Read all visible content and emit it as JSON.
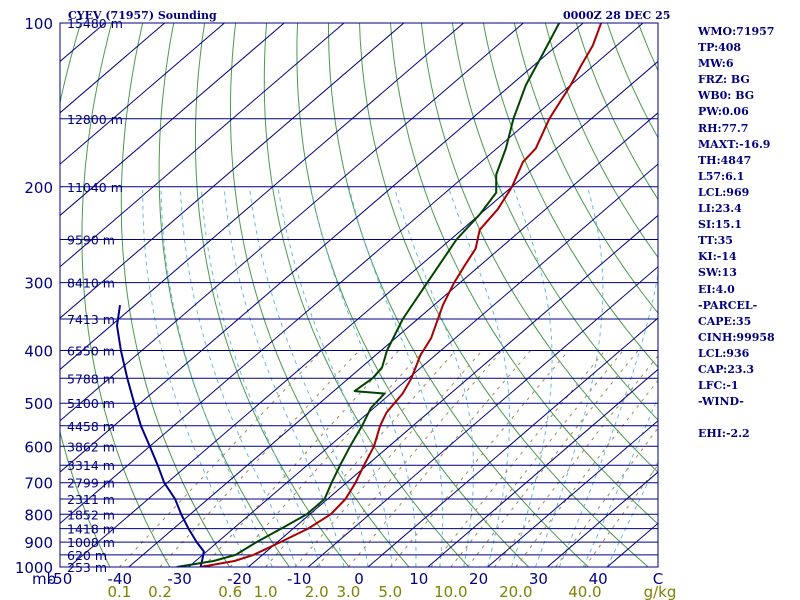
{
  "header": {
    "station": "CYEV (71957) Sounding",
    "time": "0000Z 28 DEC 25"
  },
  "indices": [
    "WMO:71957",
    "TP:408",
    "MW:6",
    "FRZ: BG",
    "WB0: BG",
    "PW:0.06",
    "RH:77.7",
    "MAXT:-16.9",
    "TH:4847",
    "L57:6.1",
    "LCL:969",
    "LI:23.4",
    "SI:15.1",
    "TT:35",
    "KI:-14",
    "SW:13",
    "EI:4.0",
    "-PARCEL-",
    "CAPE:35",
    "CINH:99958",
    "LCL:936",
    "CAP:23.3",
    "LFC:-1",
    "-WIND-",
    "",
    "EHI:-2.2"
  ],
  "colors": {
    "isobar": "#000080",
    "isotherm": "#000080",
    "dry_adiabat": "#4a9a4a",
    "moist_adiabat": "#66bbdd",
    "mixing_ratio": "#a08850",
    "temperature": "#aa0000",
    "dewpoint": "#004400",
    "parcel": "#000088",
    "text": "#000080",
    "mixing_label": "#808000"
  },
  "chart_data": {
    "type": "skew-t",
    "title": "",
    "pressure_unit_label": "mb",
    "x_unit_label": "C",
    "mixing_unit_label": "g/kg",
    "pressure_range": [
      1000,
      100
    ],
    "pressure_ticks": [
      100,
      200,
      300,
      400,
      500,
      600,
      700,
      800,
      900,
      1000
    ],
    "isobars": [
      100,
      150,
      200,
      250,
      300,
      350,
      400,
      450,
      500,
      550,
      600,
      650,
      700,
      750,
      800,
      850,
      900,
      950,
      1000
    ],
    "height_labels": [
      {
        "p": 100,
        "label": "15480 m"
      },
      {
        "p": 150,
        "label": "12800 m"
      },
      {
        "p": 200,
        "label": "11040 m"
      },
      {
        "p": 250,
        "label": "9590 m"
      },
      {
        "p": 300,
        "label": "8410 m"
      },
      {
        "p": 350,
        "label": "7413 m"
      },
      {
        "p": 400,
        "label": "6550 m"
      },
      {
        "p": 450,
        "label": "5788 m"
      },
      {
        "p": 500,
        "label": "5100 m"
      },
      {
        "p": 550,
        "label": "4458 m"
      },
      {
        "p": 600,
        "label": "3862 m"
      },
      {
        "p": 650,
        "label": "3314 m"
      },
      {
        "p": 700,
        "label": "2799 m"
      },
      {
        "p": 750,
        "label": "2311 m"
      },
      {
        "p": 800,
        "label": "1852 m"
      },
      {
        "p": 850,
        "label": "1418 m"
      },
      {
        "p": 900,
        "label": "1008 m"
      },
      {
        "p": 950,
        "label": "620 m"
      },
      {
        "p": 1000,
        "label": "253 m"
      }
    ],
    "temp_ticks": [
      {
        "t": -50,
        "label": "-50"
      },
      {
        "t": -40,
        "label": "-40"
      },
      {
        "t": -30,
        "label": "-30"
      },
      {
        "t": -20,
        "label": "-20"
      },
      {
        "t": -10,
        "label": "-10"
      },
      {
        "t": 0,
        "label": "0"
      },
      {
        "t": 10,
        "label": "10"
      },
      {
        "t": 20,
        "label": "20"
      },
      {
        "t": 30,
        "label": "30"
      },
      {
        "t": 40,
        "label": "40"
      },
      {
        "t": 50,
        "label": "C"
      }
    ],
    "mixing_ratios": [
      {
        "w": 0.1,
        "label": "0.1"
      },
      {
        "w": 0.2,
        "label": "0.2"
      },
      {
        "w": 0.6,
        "label": "0.6"
      },
      {
        "w": 1.0,
        "label": "1.0"
      },
      {
        "w": 2.0,
        "label": "2.0"
      },
      {
        "w": 3.0,
        "label": "3.0"
      },
      {
        "w": 5.0,
        "label": "5.0"
      },
      {
        "w": 10.0,
        "label": "10.0"
      },
      {
        "w": 20.0,
        "label": "20.0"
      },
      {
        "w": 40.0,
        "label": "40.0"
      }
    ],
    "temperature": [
      {
        "p": 1000,
        "t": -28.0
      },
      {
        "p": 975,
        "t": -23.5
      },
      {
        "p": 950,
        "t": -21.5
      },
      {
        "p": 900,
        "t": -19.5
      },
      {
        "p": 850,
        "t": -17.5
      },
      {
        "p": 800,
        "t": -16.5
      },
      {
        "p": 750,
        "t": -17.0
      },
      {
        "p": 700,
        "t": -18.5
      },
      {
        "p": 650,
        "t": -20.5
      },
      {
        "p": 600,
        "t": -22.5
      },
      {
        "p": 550,
        "t": -25.5
      },
      {
        "p": 520,
        "t": -27.0
      },
      {
        "p": 480,
        "t": -28.0
      },
      {
        "p": 450,
        "t": -29.5
      },
      {
        "p": 408,
        "t": -32.5
      },
      {
        "p": 380,
        "t": -34.0
      },
      {
        "p": 330,
        "t": -38.5
      },
      {
        "p": 300,
        "t": -41.0
      },
      {
        "p": 280,
        "t": -42.5
      },
      {
        "p": 260,
        "t": -44.0
      },
      {
        "p": 240,
        "t": -47.0
      },
      {
        "p": 220,
        "t": -48.0
      },
      {
        "p": 200,
        "t": -50.0
      },
      {
        "p": 180,
        "t": -53.0
      },
      {
        "p": 170,
        "t": -53.5
      },
      {
        "p": 150,
        "t": -57.0
      },
      {
        "p": 130,
        "t": -60.0
      },
      {
        "p": 120,
        "t": -62.0
      },
      {
        "p": 110,
        "t": -64.0
      },
      {
        "p": 100,
        "t": -67.0
      }
    ],
    "dewpoint": [
      {
        "p": 1000,
        "t": -32.0
      },
      {
        "p": 975,
        "t": -27.0
      },
      {
        "p": 950,
        "t": -24.5
      },
      {
        "p": 900,
        "t": -23.5
      },
      {
        "p": 850,
        "t": -22.0
      },
      {
        "p": 800,
        "t": -20.5
      },
      {
        "p": 750,
        "t": -20.5
      },
      {
        "p": 700,
        "t": -22.5
      },
      {
        "p": 650,
        "t": -24.5
      },
      {
        "p": 600,
        "t": -26.5
      },
      {
        "p": 550,
        "t": -28.5
      },
      {
        "p": 510,
        "t": -30.5
      },
      {
        "p": 480,
        "t": -31.0
      },
      {
        "p": 475,
        "t": -36.5
      },
      {
        "p": 450,
        "t": -36.0
      },
      {
        "p": 430,
        "t": -36.5
      },
      {
        "p": 400,
        "t": -39.0
      },
      {
        "p": 350,
        "t": -42.5
      },
      {
        "p": 300,
        "t": -45.5
      },
      {
        "p": 250,
        "t": -49.0
      },
      {
        "p": 225,
        "t": -50.0
      },
      {
        "p": 205,
        "t": -51.5
      },
      {
        "p": 190,
        "t": -55.0
      },
      {
        "p": 170,
        "t": -58.5
      },
      {
        "p": 150,
        "t": -63.0
      },
      {
        "p": 130,
        "t": -67.5
      },
      {
        "p": 115,
        "t": -70.5
      },
      {
        "p": 100,
        "t": -74.0
      }
    ],
    "parcel": [
      {
        "p": 1000,
        "t": -28.0
      },
      {
        "p": 960,
        "t": -29.5
      },
      {
        "p": 936,
        "t": -30.5
      },
      {
        "p": 900,
        "t": -33.5
      },
      {
        "p": 850,
        "t": -37.5
      },
      {
        "p": 800,
        "t": -41.5
      },
      {
        "p": 750,
        "t": -45.5
      },
      {
        "p": 700,
        "t": -50.5
      },
      {
        "p": 650,
        "t": -55.0
      },
      {
        "p": 600,
        "t": -60.0
      },
      {
        "p": 550,
        "t": -65.5
      },
      {
        "p": 500,
        "t": -71.0
      },
      {
        "p": 450,
        "t": -77.0
      },
      {
        "p": 400,
        "t": -83.5
      },
      {
        "p": 360,
        "t": -89.0
      },
      {
        "p": 330,
        "t": -92.5
      }
    ]
  }
}
